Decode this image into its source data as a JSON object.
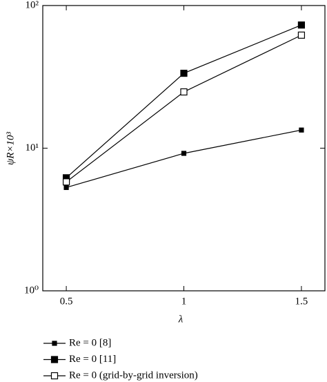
{
  "chart_data": {
    "type": "line",
    "x_label": "λ",
    "y_label": "ψR×10³",
    "x": [
      0.5,
      1,
      1.5
    ],
    "xlim": [
      0.4,
      1.6
    ],
    "xticks": [
      0.5,
      1,
      1.5
    ],
    "ylim": [
      1,
      100
    ],
    "y_scale": "log",
    "yticks": [
      {
        "value": 1,
        "label": "10⁰"
      },
      {
        "value": 10,
        "label": "10¹"
      },
      {
        "value": 100,
        "label": "10²"
      }
    ],
    "grid": false,
    "legend": "bottom",
    "series": [
      {
        "name": "Re = 0 [8]",
        "color": "#000000",
        "marker": "small-filled-square",
        "values": [
          5.3,
          9.2,
          13.4
        ]
      },
      {
        "name": "Re = 0 [11]",
        "color": "#000000",
        "marker": "filled-square",
        "values": [
          6.2,
          33.5,
          73
        ]
      },
      {
        "name": "Re = 0 (grid-by-grid inversion)",
        "color": "#000000",
        "marker": "open-square",
        "values": [
          5.8,
          24.8,
          62
        ]
      }
    ]
  }
}
